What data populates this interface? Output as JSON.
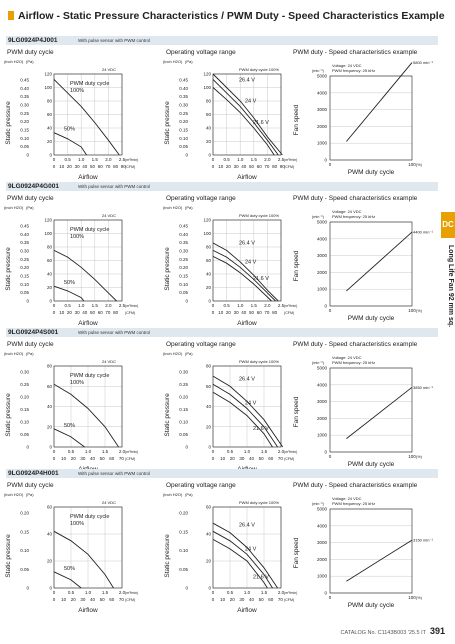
{
  "page_title": "Airflow - Static Pressure Characteristics / PWM Duty - Speed Characteristics Example",
  "side_tab": "DC",
  "side_text": "Long Life Fan 92 mm sq.",
  "panel_titles": [
    "PWM duty cycle",
    "Operating voltage range",
    "PWM duty - Speed characteristics example"
  ],
  "axis": {
    "static_pressure": "Static pressure",
    "airflow": "Airflow",
    "fan_speed": "Fan speed",
    "pwm_duty": "PWM duty cycle",
    "inch_h2o": "(inch H2O)",
    "pa": "(Pa)",
    "m3min": "(m³/min)",
    "cfm": "(CFM)",
    "min": "(min⁻¹)",
    "pct": "(%)"
  },
  "legend": {
    "pwm_cycle": "PWM duty cycle",
    "pwm_100": "100%",
    "pwm_50": "50%",
    "pwm_duty_100": "PWM duty cycle 100%",
    "voltage_24": "24 VDC",
    "v_high": "26.4 V",
    "v_mid": "24 V",
    "v_low": "21.6 V",
    "speed_voltage": "Voltage: 24 VDC",
    "speed_freq": "PWM frequency: 25 kHz"
  },
  "sections": [
    {
      "model": "9LG0924P4J001",
      "desc": "With pulse sensor with PWM control",
      "chart_data": {
        "type": "line",
        "pa_ticks": [
          "120",
          "100",
          "80",
          "60",
          "40",
          "20",
          "0"
        ],
        "inch_ticks": [
          "0.45",
          "0.40",
          "0.35",
          "0.30",
          "0.25",
          "0.20",
          "0.15",
          "0.10",
          "0.05",
          "0"
        ],
        "m3_ticks": [
          "0",
          "0.5",
          "1.0",
          "1.5",
          "2.0",
          "2.5"
        ],
        "cfm_ticks": [
          "0",
          "10",
          "20",
          "30",
          "40",
          "50",
          "60",
          "70",
          "80",
          "90"
        ],
        "speed_ticks": [
          "5000",
          "4000",
          "3000",
          "2000",
          "1000",
          "0"
        ],
        "pct_ticks": [
          "0",
          "100"
        ],
        "max_speed_label": "5800 min⁻¹",
        "pwm_100": {
          "x": [
            0,
            0.5,
            1.0,
            1.5,
            2.0,
            2.4
          ],
          "y": [
            112,
            92,
            72,
            48,
            22,
            0
          ]
        },
        "pwm_50": {
          "x": [
            0,
            0.5,
            1.0,
            1.2
          ],
          "y": [
            33,
            24,
            12,
            0
          ]
        },
        "v_high": {
          "x": [
            0,
            0.5,
            1.0,
            1.5,
            2.0,
            2.55
          ],
          "y": [
            120,
            100,
            80,
            55,
            27,
            0
          ]
        },
        "v_mid": {
          "x": [
            0,
            0.5,
            1.0,
            1.5,
            2.0,
            2.4
          ],
          "y": [
            112,
            92,
            72,
            48,
            22,
            0
          ]
        },
        "v_low": {
          "x": [
            0,
            0.5,
            1.0,
            1.5,
            2.0,
            2.25
          ],
          "y": [
            100,
            82,
            63,
            40,
            15,
            0
          ]
        },
        "speed": {
          "x": [
            20,
            100
          ],
          "y": [
            1100,
            5800
          ]
        }
      }
    },
    {
      "model": "9LG0924P4G001",
      "desc": "With pulse sensor with PWM control",
      "chart_data": {
        "type": "line",
        "pa_ticks": [
          "120",
          "100",
          "80",
          "60",
          "40",
          "20",
          "0"
        ],
        "inch_ticks": [
          "0.45",
          "0.40",
          "0.35",
          "0.30",
          "0.25",
          "0.20",
          "0.15",
          "0.10",
          "0.05",
          "0"
        ],
        "m3_ticks": [
          "0",
          "0.5",
          "1.0",
          "1.5",
          "2.0",
          "2.5"
        ],
        "cfm_ticks": [
          "0",
          "10",
          "20",
          "30",
          "40",
          "50",
          "60",
          "70",
          "80"
        ],
        "speed_ticks": [
          "5000",
          "4000",
          "3000",
          "2000",
          "1000",
          "0"
        ],
        "pct_ticks": [
          "0",
          "100"
        ],
        "max_speed_label": "4400 min⁻¹",
        "pwm_100": {
          "x": [
            0,
            0.5,
            1.0,
            1.5,
            2.0,
            2.3
          ],
          "y": [
            75,
            65,
            50,
            32,
            12,
            0
          ]
        },
        "pwm_50": {
          "x": [
            0,
            0.5,
            1.0,
            1.1
          ],
          "y": [
            22,
            15,
            5,
            0
          ]
        },
        "v_high": {
          "x": [
            0,
            0.5,
            1.0,
            1.5,
            2.0,
            2.4
          ],
          "y": [
            86,
            75,
            58,
            38,
            16,
            0
          ]
        },
        "v_mid": {
          "x": [
            0,
            0.5,
            1.0,
            1.5,
            2.0,
            2.3
          ],
          "y": [
            75,
            65,
            50,
            32,
            12,
            0
          ]
        },
        "v_low": {
          "x": [
            0,
            0.5,
            1.0,
            1.5,
            2.0,
            2.15
          ],
          "y": [
            66,
            56,
            42,
            25,
            6,
            0
          ]
        },
        "speed": {
          "x": [
            20,
            100
          ],
          "y": [
            900,
            4400
          ]
        }
      }
    },
    {
      "model": "9LG0924P4S001",
      "desc": "With pulse sensor with PWM control",
      "chart_data": {
        "type": "line",
        "pa_ticks": [
          "80",
          "60",
          "40",
          "20",
          "0"
        ],
        "inch_ticks": [
          "0.30",
          "0.25",
          "0.20",
          "0.15",
          "0.10",
          "0.05",
          "0"
        ],
        "m3_ticks": [
          "0",
          "0.5",
          "1.0",
          "1.5",
          "2.0"
        ],
        "cfm_ticks": [
          "0",
          "10",
          "20",
          "30",
          "40",
          "50",
          "60",
          "70"
        ],
        "speed_ticks": [
          "5000",
          "4000",
          "3000",
          "2000",
          "1000",
          "0"
        ],
        "pct_ticks": [
          "0",
          "100"
        ],
        "max_speed_label": "3850 min⁻¹",
        "pwm_100": {
          "x": [
            0,
            0.5,
            1.0,
            1.5,
            1.9
          ],
          "y": [
            62,
            52,
            38,
            20,
            0
          ]
        },
        "pwm_50": {
          "x": [
            0,
            0.5,
            0.9
          ],
          "y": [
            18,
            10,
            0
          ]
        },
        "v_high": {
          "x": [
            0,
            0.5,
            1.0,
            1.5,
            2.05
          ],
          "y": [
            70,
            60,
            45,
            27,
            0
          ]
        },
        "v_mid": {
          "x": [
            0,
            0.5,
            1.0,
            1.5,
            1.9
          ],
          "y": [
            62,
            52,
            38,
            20,
            0
          ]
        },
        "v_low": {
          "x": [
            0,
            0.5,
            1.0,
            1.5,
            1.75
          ],
          "y": [
            54,
            44,
            31,
            13,
            0
          ]
        },
        "speed": {
          "x": [
            20,
            100
          ],
          "y": [
            800,
            3850
          ]
        }
      }
    },
    {
      "model": "9LG0924P4H001",
      "desc": "With pulse sensor with PWM control",
      "chart_data": {
        "type": "line",
        "pa_ticks": [
          "60",
          "40",
          "20",
          "0"
        ],
        "inch_ticks": [
          "0.20",
          "0.15",
          "0.10",
          "0.05",
          "0"
        ],
        "m3_ticks": [
          "0",
          "0.5",
          "1.0",
          "1.5",
          "2.0"
        ],
        "cfm_ticks": [
          "0",
          "10",
          "20",
          "30",
          "40",
          "50",
          "60",
          "70"
        ],
        "speed_ticks": [
          "5000",
          "4000",
          "3000",
          "2000",
          "1000",
          "0"
        ],
        "pct_ticks": [
          "0",
          "100"
        ],
        "max_speed_label": "3150 min⁻¹",
        "pwm_100": {
          "x": [
            0,
            0.5,
            1.0,
            1.5,
            1.75
          ],
          "y": [
            42,
            35,
            25,
            10,
            0
          ]
        },
        "pwm_50": {
          "x": [
            0,
            0.5,
            0.8
          ],
          "y": [
            12,
            6,
            0
          ]
        },
        "v_high": {
          "x": [
            0,
            0.5,
            1.0,
            1.5,
            1.9
          ],
          "y": [
            48,
            41,
            30,
            15,
            0
          ]
        },
        "v_mid": {
          "x": [
            0,
            0.5,
            1.0,
            1.5,
            1.75
          ],
          "y": [
            42,
            35,
            25,
            10,
            0
          ]
        },
        "v_low": {
          "x": [
            0,
            0.5,
            1.0,
            1.5,
            1.6
          ],
          "y": [
            36,
            29,
            20,
            4,
            0
          ]
        },
        "speed": {
          "x": [
            20,
            100
          ],
          "y": [
            700,
            3150
          ]
        }
      }
    }
  ],
  "footer": {
    "catalog": "CATALOG No. C1143B003 '25.5 IT",
    "page": "391"
  }
}
